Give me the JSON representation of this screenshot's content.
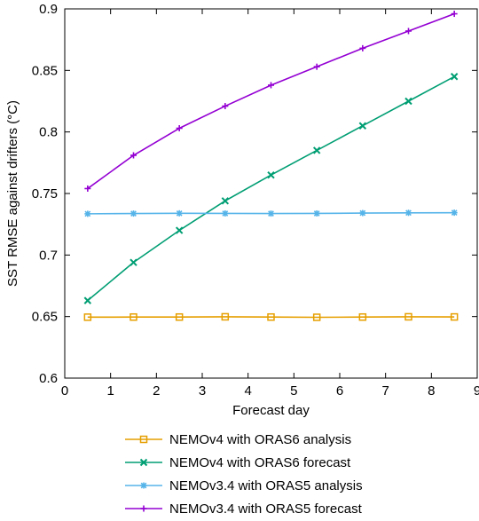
{
  "chart_data": {
    "type": "line",
    "title": "",
    "xlabel": "Forecast day",
    "ylabel": "SST RMSE against drifters (°C)",
    "xlim": [
      0,
      9
    ],
    "ylim": [
      0.6,
      0.9
    ],
    "xticks": [
      0,
      1,
      2,
      3,
      4,
      5,
      6,
      7,
      8,
      9
    ],
    "yticks": [
      0.6,
      0.65,
      0.7,
      0.75,
      0.8,
      0.85,
      0.9
    ],
    "xtick_labels": [
      "0",
      "1",
      "2",
      "3",
      "4",
      "5",
      "6",
      "7",
      "8",
      "9"
    ],
    "ytick_labels": [
      "0.6",
      "0.65",
      "0.7",
      "0.75",
      "0.8",
      "0.85",
      "0.9"
    ],
    "grid": false,
    "legend_position": "bottom",
    "x": [
      0.5,
      1.5,
      2.5,
      3.5,
      4.5,
      5.5,
      6.5,
      7.5,
      8.5
    ],
    "series": [
      {
        "name": "NEMOv4 with ORAS6 analysis",
        "color": "#e69f00",
        "marker": "square",
        "values": [
          0.6495,
          0.6496,
          0.6496,
          0.6498,
          0.6496,
          0.6494,
          0.6496,
          0.6498,
          0.6497
        ]
      },
      {
        "name": "NEMOv4 with ORAS6 forecast",
        "color": "#009e73",
        "marker": "x",
        "values": [
          0.663,
          0.694,
          0.72,
          0.744,
          0.765,
          0.785,
          0.805,
          0.825,
          0.845
        ]
      },
      {
        "name": "NEMOv3.4 with ORAS5 analysis",
        "color": "#56b4e9",
        "marker": "star",
        "values": [
          0.7335,
          0.7337,
          0.7339,
          0.7338,
          0.7337,
          0.7338,
          0.7341,
          0.7343,
          0.7344
        ]
      },
      {
        "name": "NEMOv3.4 with ORAS5 forecast",
        "color": "#9400d3",
        "marker": "plus",
        "values": [
          0.754,
          0.781,
          0.803,
          0.821,
          0.838,
          0.853,
          0.868,
          0.882,
          0.896
        ]
      }
    ]
  }
}
